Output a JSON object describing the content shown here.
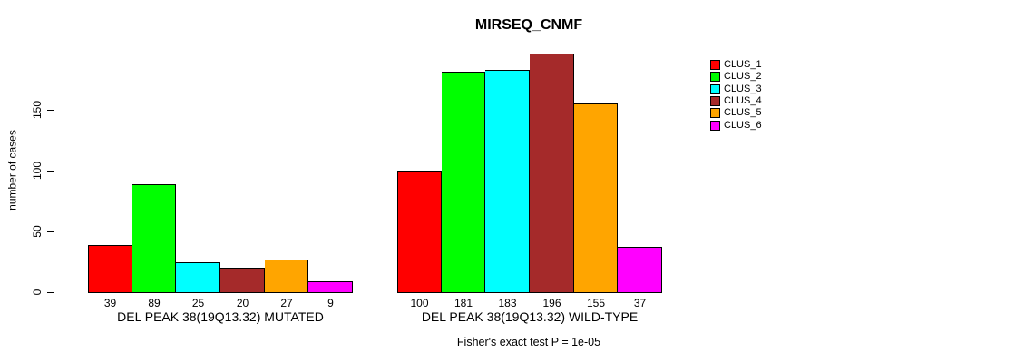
{
  "chart_data": {
    "type": "bar",
    "title": "MIRSEQ_CNMF",
    "ylabel": "number of cases",
    "xlabel": "",
    "annotation": "Fisher's exact test P = 1e-05",
    "yticks": [
      0,
      50,
      100,
      150
    ],
    "ylim": [
      0,
      200
    ],
    "grid": false,
    "legend_position": "right-top",
    "clusters": [
      {
        "name": "CLUS_1",
        "color": "#ff0000"
      },
      {
        "name": "CLUS_2",
        "color": "#00ff00"
      },
      {
        "name": "CLUS_3",
        "color": "#00ffff"
      },
      {
        "name": "CLUS_4",
        "color": "#a52a2a"
      },
      {
        "name": "CLUS_5",
        "color": "#ffa500"
      },
      {
        "name": "CLUS_6",
        "color": "#ff00ff"
      }
    ],
    "groups": [
      {
        "label": "DEL PEAK 38(19Q13.32) MUTATED",
        "values": [
          39,
          89,
          25,
          20,
          27,
          9
        ]
      },
      {
        "label": "DEL PEAK 38(19Q13.32) WILD-TYPE",
        "values": [
          100,
          181,
          183,
          196,
          155,
          37
        ]
      }
    ]
  }
}
